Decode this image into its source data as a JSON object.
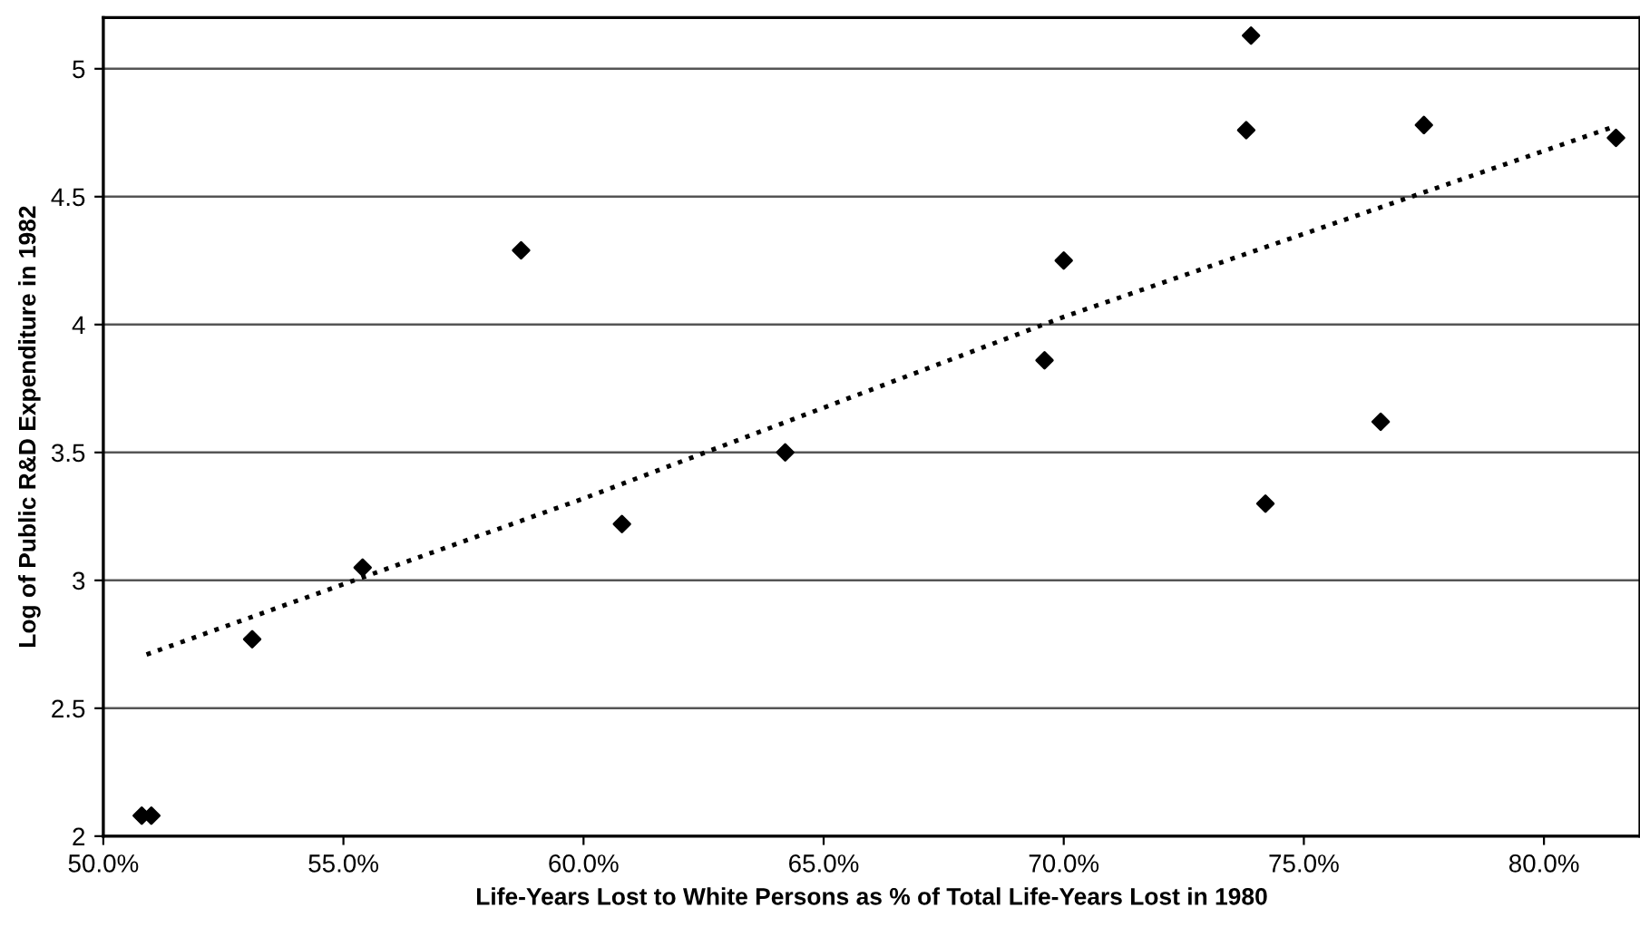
{
  "chart_data": {
    "type": "scatter",
    "xlabel": "Life-Years Lost to White Persons as % of Total Life-Years Lost in 1980",
    "ylabel": "Log of Public R&D Expenditure in 1982",
    "xlim": [
      50,
      82
    ],
    "ylim": [
      2,
      5.2
    ],
    "xticks": [
      {
        "value": 50,
        "label": "50.0%"
      },
      {
        "value": 55,
        "label": "55.0%"
      },
      {
        "value": 60,
        "label": "60.0%"
      },
      {
        "value": 65,
        "label": "65.0%"
      },
      {
        "value": 70,
        "label": "70.0%"
      },
      {
        "value": 75,
        "label": "75.0%"
      },
      {
        "value": 80,
        "label": "80.0%"
      }
    ],
    "yticks": [
      2,
      2.5,
      3,
      3.5,
      4,
      4.5,
      5
    ],
    "grid": "y",
    "marker": "diamond",
    "series": [
      {
        "color": "#000000",
        "x": [
          50.8,
          51.0,
          53.1,
          55.4,
          58.7,
          60.8,
          64.2,
          69.6,
          70.0,
          73.8,
          73.9,
          74.2,
          76.6,
          77.5,
          81.5
        ],
        "values": [
          2.08,
          2.08,
          2.77,
          3.05,
          4.29,
          3.22,
          3.5,
          3.86,
          4.25,
          4.76,
          5.13,
          3.3,
          3.62,
          4.78,
          4.73
        ]
      },
      {
        "type": "line",
        "line_style": "dotted",
        "marker": "none",
        "color": "#000000",
        "x": [
          50.9,
          60,
          70,
          81.4
        ],
        "values": [
          2.71,
          3.32,
          4.03,
          4.77
        ]
      }
    ]
  }
}
